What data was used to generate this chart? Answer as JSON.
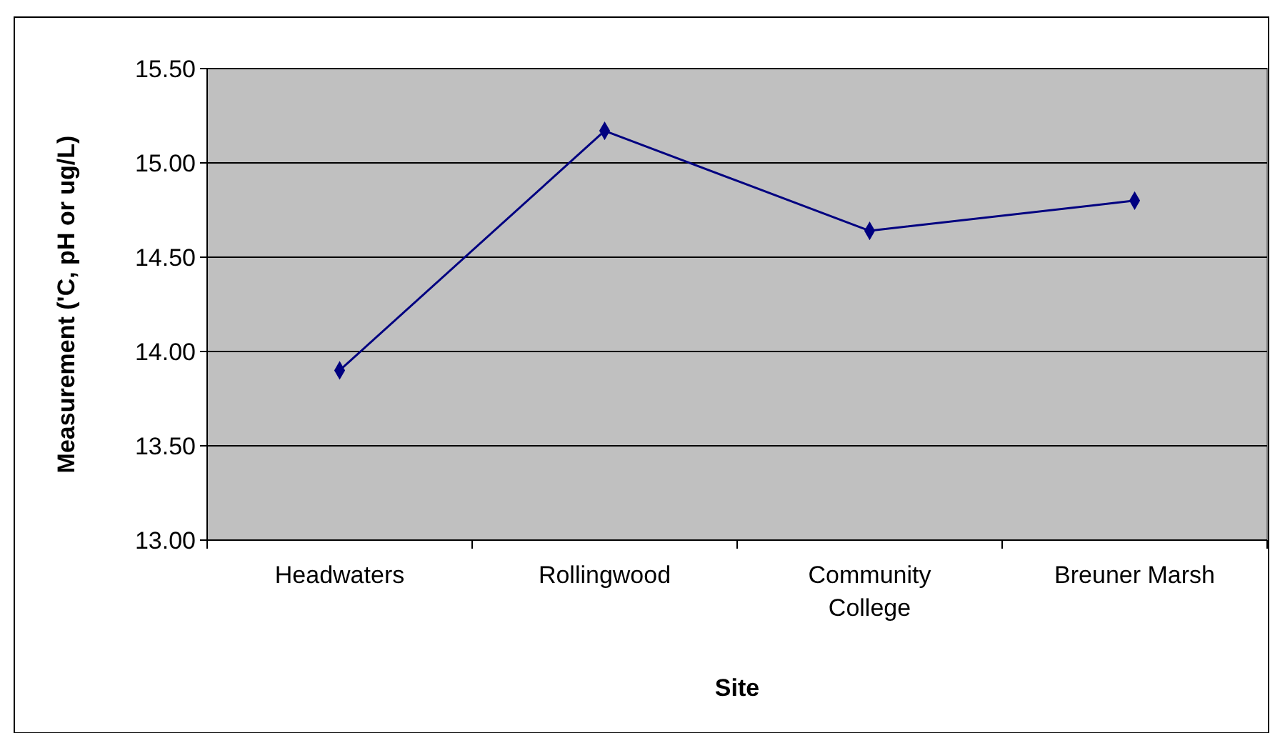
{
  "chart_data": {
    "type": "line",
    "xlabel": "Site",
    "ylabel": "Measurement ('C, pH or ug/L)",
    "categories": [
      "Headwaters",
      "Rollingwood",
      "Community College",
      "Breuner Marsh"
    ],
    "series": [
      {
        "color": "#000080",
        "values": [
          13.9,
          15.17,
          14.64,
          14.8
        ]
      }
    ],
    "ylim": [
      13,
      15.5
    ],
    "yticks": [
      {
        "value": 13,
        "label": "13.00"
      },
      {
        "value": 13.5,
        "label": "13.50"
      },
      {
        "value": 14,
        "label": "14.00"
      },
      {
        "value": 14.5,
        "label": "14.50"
      },
      {
        "value": 15,
        "label": "15.00"
      },
      {
        "value": 15.5,
        "label": "15.50"
      }
    ],
    "grid": "y",
    "marker": "diamond",
    "line_style": "solid"
  }
}
